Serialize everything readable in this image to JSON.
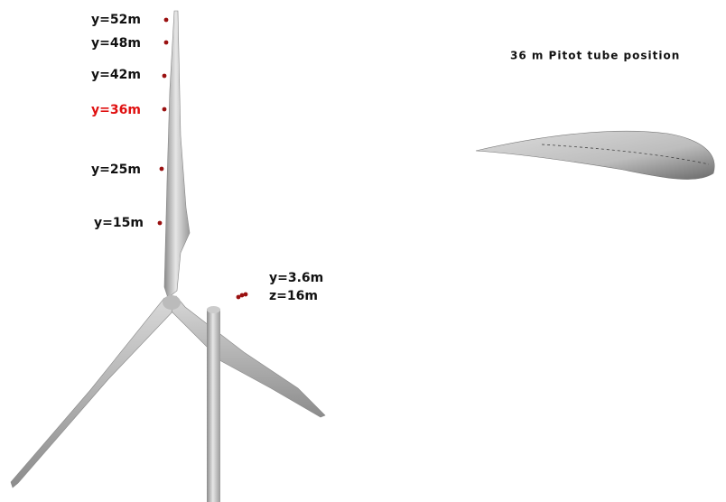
{
  "span_labels": [
    "y=52m",
    "y=48m",
    "y=42m",
    "y=36m",
    "y=25m",
    "y=15m"
  ],
  "hub_probe": {
    "lines": [
      "y=3.6m",
      "z=16m"
    ]
  },
  "airfoil": {
    "title": "36 m Pitot tube position"
  }
}
